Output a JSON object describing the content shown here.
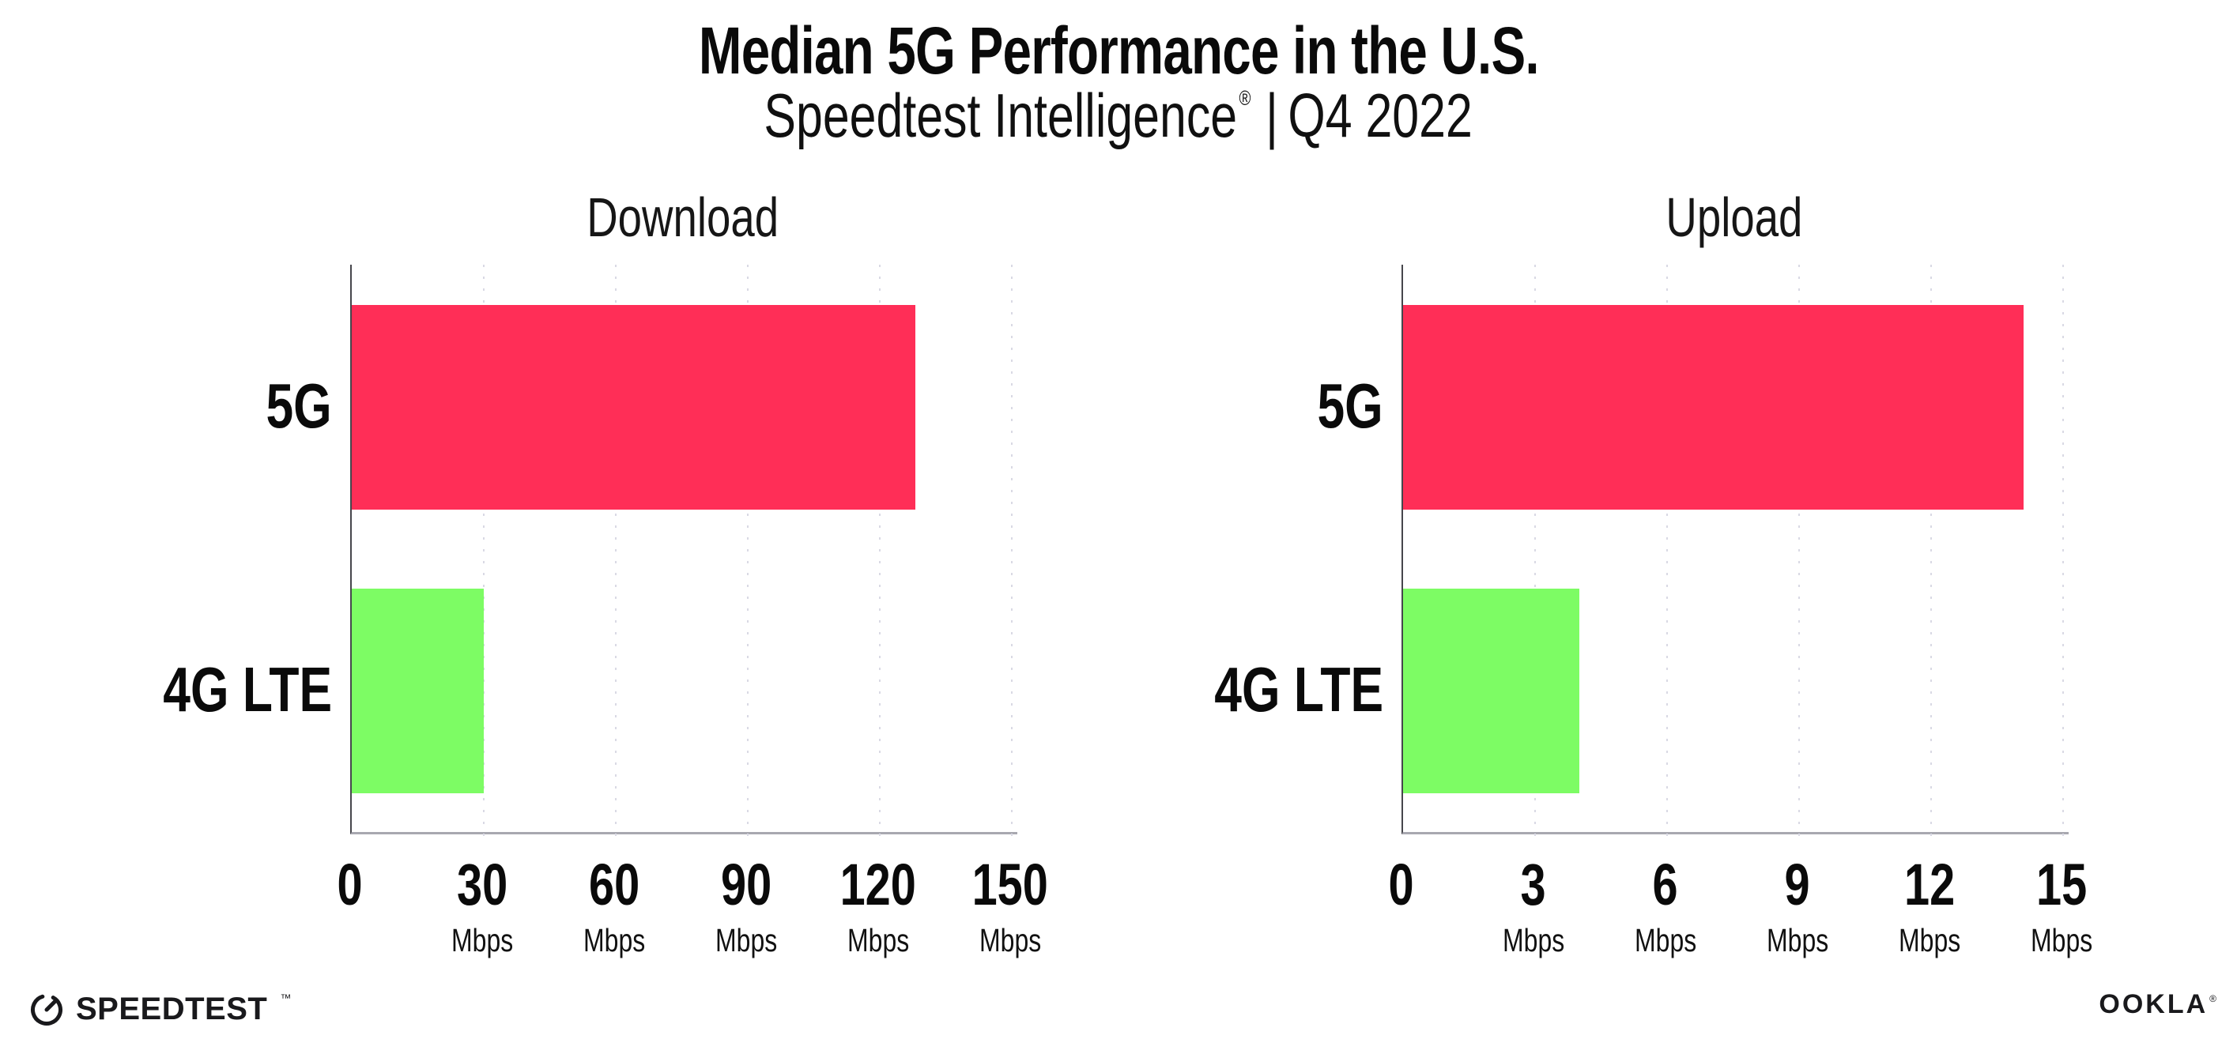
{
  "header": {
    "title": "Median 5G Performance in the U.S.",
    "subtitle_brand": "Speedtest Intelligence",
    "subtitle_reg": "®",
    "subtitle_sep": "|",
    "subtitle_period": "Q4 2022"
  },
  "colors": {
    "bar_5g": "#FF2E57",
    "bar_4g_lte": "#7DFC64",
    "gridline": "#D9D9E4",
    "y_axis_line": "#46464C",
    "x_axis_line": "#A8A8B0",
    "text": "#0A0A0A"
  },
  "chart_data": [
    {
      "type": "bar",
      "orientation": "horizontal",
      "title": "Download",
      "categories": [
        "5G",
        "4G LTE"
      ],
      "values": [
        128,
        30
      ],
      "unit": "Mbps",
      "xlim": [
        0,
        150
      ],
      "grid": "vertical-dotted",
      "legend": "none",
      "bar_colors": [
        "#FF2E57",
        "#7DFC64"
      ],
      "ticks": [
        {
          "label": "0",
          "unit": ""
        },
        {
          "label": "30",
          "unit": "Mbps"
        },
        {
          "label": "60",
          "unit": "Mbps"
        },
        {
          "label": "90",
          "unit": "Mbps"
        },
        {
          "label": "120",
          "unit": "Mbps"
        },
        {
          "label": "150",
          "unit": "Mbps"
        }
      ]
    },
    {
      "type": "bar",
      "orientation": "horizontal",
      "title": "Upload",
      "categories": [
        "5G",
        "4G LTE"
      ],
      "values": [
        14.1,
        4
      ],
      "unit": "Mbps",
      "xlim": [
        0,
        15
      ],
      "grid": "vertical-dotted",
      "legend": "none",
      "bar_colors": [
        "#FF2E57",
        "#7DFC64"
      ],
      "ticks": [
        {
          "label": "0",
          "unit": ""
        },
        {
          "label": "3",
          "unit": "Mbps"
        },
        {
          "label": "6",
          "unit": "Mbps"
        },
        {
          "label": "9",
          "unit": "Mbps"
        },
        {
          "label": "12",
          "unit": "Mbps"
        },
        {
          "label": "15",
          "unit": "Mbps"
        }
      ]
    }
  ],
  "footer": {
    "speedtest_label": "SPEEDTEST",
    "speedtest_tm": "™",
    "ookla_label": "OOKLA",
    "ookla_reg": "®"
  }
}
